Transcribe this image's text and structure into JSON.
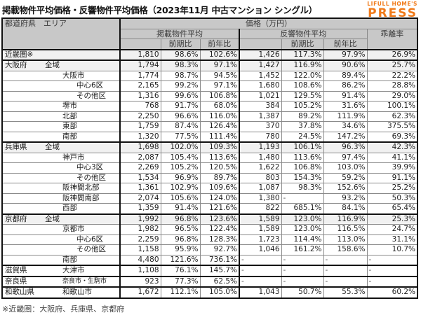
{
  "title": "掲載物件平均価格・反響物件平均価格（2023年11月 中古マンション シングル）",
  "logo": {
    "line1": "LIFULL HOME'S",
    "line2": "PRESS",
    "color": "#f07a1a"
  },
  "header": {
    "area_label": "都道府県　エリア",
    "price_label": "価格（万円）",
    "listed_label": "掲載物件平均",
    "inquiry_label": "反響物件平均",
    "gap_label": "乖離率",
    "qoq_label": "前期比",
    "yoy_label": "前年比"
  },
  "rows": [
    {
      "pref": "近畿圏※",
      "sub": "",
      "level": 0,
      "listed": "1,810",
      "listed_qoq": "98.6%",
      "listed_yoy": "102.6%",
      "inq": "1,426",
      "inq_qoq": "117.3%",
      "inq_yoy": "97.9%",
      "gap": "26.9%"
    },
    {
      "pref": "大阪府",
      "sub": "全域",
      "level": 1,
      "listed": "1,794",
      "listed_qoq": "98.3%",
      "listed_yoy": "97.1%",
      "inq": "1,427",
      "inq_qoq": "116.9%",
      "inq_yoy": "90.6%",
      "gap": "25.7%"
    },
    {
      "pref": "",
      "sub": "大阪市",
      "level": 2,
      "listed": "1,774",
      "listed_qoq": "98.7%",
      "listed_yoy": "94.5%",
      "inq": "1,452",
      "inq_qoq": "122.0%",
      "inq_yoy": "89.4%",
      "gap": "22.2%"
    },
    {
      "pref": "",
      "sub": "中心6区",
      "level": 3,
      "listed": "2,165",
      "listed_qoq": "99.2%",
      "listed_yoy": "97.1%",
      "inq": "1,680",
      "inq_qoq": "108.6%",
      "inq_yoy": "86.2%",
      "gap": "28.8%"
    },
    {
      "pref": "",
      "sub": "その他区",
      "level": 3,
      "listed": "1,316",
      "listed_qoq": "99.6%",
      "listed_yoy": "106.8%",
      "inq": "1,021",
      "inq_qoq": "129.5%",
      "inq_yoy": "91.4%",
      "gap": "29.0%"
    },
    {
      "pref": "",
      "sub": "堺市",
      "level": 2,
      "listed": "768",
      "listed_qoq": "91.7%",
      "listed_yoy": "68.0%",
      "inq": "384",
      "inq_qoq": "105.2%",
      "inq_yoy": "31.6%",
      "gap": "100.1%"
    },
    {
      "pref": "",
      "sub": "北部",
      "level": 2,
      "listed": "2,250",
      "listed_qoq": "96.6%",
      "listed_yoy": "116.0%",
      "inq": "1,387",
      "inq_qoq": "89.2%",
      "inq_yoy": "111.9%",
      "gap": "62.3%"
    },
    {
      "pref": "",
      "sub": "東部",
      "level": 2,
      "listed": "1,759",
      "listed_qoq": "87.4%",
      "listed_yoy": "126.4%",
      "inq": "370",
      "inq_qoq": "37.8%",
      "inq_yoy": "34.6%",
      "gap": "375.5%"
    },
    {
      "pref": "",
      "sub": "南部",
      "level": 2,
      "listed": "1,320",
      "listed_qoq": "77.5%",
      "listed_yoy": "111.4%",
      "inq": "780",
      "inq_qoq": "24.5%",
      "inq_yoy": "147.2%",
      "gap": "69.3%"
    },
    {
      "pref": "兵庫県",
      "sub": "全域",
      "level": 1,
      "listed": "1,698",
      "listed_qoq": "102.0%",
      "listed_yoy": "109.3%",
      "inq": "1,193",
      "inq_qoq": "106.1%",
      "inq_yoy": "96.3%",
      "gap": "42.3%"
    },
    {
      "pref": "",
      "sub": "神戸市",
      "level": 2,
      "listed": "2,087",
      "listed_qoq": "105.4%",
      "listed_yoy": "113.6%",
      "inq": "1,480",
      "inq_qoq": "113.6%",
      "inq_yoy": "97.4%",
      "gap": "41.1%"
    },
    {
      "pref": "",
      "sub": "中心3区",
      "level": 3,
      "listed": "2,269",
      "listed_qoq": "105.2%",
      "listed_yoy": "120.5%",
      "inq": "1,622",
      "inq_qoq": "106.8%",
      "inq_yoy": "103.0%",
      "gap": "39.9%"
    },
    {
      "pref": "",
      "sub": "その他区",
      "level": 3,
      "listed": "1,534",
      "listed_qoq": "96.9%",
      "listed_yoy": "89.7%",
      "inq": "803",
      "inq_qoq": "154.3%",
      "inq_yoy": "59.2%",
      "gap": "91.1%"
    },
    {
      "pref": "",
      "sub": "阪神間北部",
      "level": 2,
      "listed": "1,361",
      "listed_qoq": "102.9%",
      "listed_yoy": "109.6%",
      "inq": "1,087",
      "inq_qoq": "98.3%",
      "inq_yoy": "152.6%",
      "gap": "25.2%"
    },
    {
      "pref": "",
      "sub": "阪神間南部",
      "level": 2,
      "listed": "2,074",
      "listed_qoq": "105.6%",
      "listed_yoy": "124.0%",
      "inq": "1,380",
      "inq_qoq": "-",
      "inq_yoy": "93.2%",
      "gap": "50.3%"
    },
    {
      "pref": "",
      "sub": "西部",
      "level": 2,
      "listed": "1,359",
      "listed_qoq": "91.4%",
      "listed_yoy": "121.6%",
      "inq": "822",
      "inq_qoq": "685.1%",
      "inq_yoy": "84.1%",
      "gap": "65.4%"
    },
    {
      "pref": "京都府",
      "sub": "全域",
      "level": 1,
      "listed": "1,992",
      "listed_qoq": "96.8%",
      "listed_yoy": "123.6%",
      "inq": "1,589",
      "inq_qoq": "123.0%",
      "inq_yoy": "116.9%",
      "gap": "25.3%"
    },
    {
      "pref": "",
      "sub": "京都市",
      "level": 2,
      "listed": "1,982",
      "listed_qoq": "96.5%",
      "listed_yoy": "122.4%",
      "inq": "1,589",
      "inq_qoq": "123.0%",
      "inq_yoy": "116.5%",
      "gap": "24.7%"
    },
    {
      "pref": "",
      "sub": "中心6区",
      "level": 3,
      "listed": "2,259",
      "listed_qoq": "96.8%",
      "listed_yoy": "128.3%",
      "inq": "1,723",
      "inq_qoq": "114.4%",
      "inq_yoy": "113.0%",
      "gap": "31.1%"
    },
    {
      "pref": "",
      "sub": "その他区",
      "level": 3,
      "listed": "1,158",
      "listed_qoq": "95.9%",
      "listed_yoy": "92.7%",
      "inq": "1,046",
      "inq_qoq": "161.2%",
      "inq_yoy": "158.6%",
      "gap": "10.7%"
    },
    {
      "pref": "",
      "sub": "南部",
      "level": 2,
      "listed": "4,480",
      "listed_qoq": "121.6%",
      "listed_yoy": "736.1%",
      "inq": "-",
      "inq_qoq": "-",
      "inq_yoy": "-",
      "gap": "-"
    },
    {
      "pref": "滋賀県",
      "sub": "大津市",
      "level": 2,
      "listed": "1,108",
      "listed_qoq": "76.1%",
      "listed_yoy": "145.7%",
      "inq": "-",
      "inq_qoq": "-",
      "inq_yoy": "-",
      "gap": "-"
    },
    {
      "pref": "奈良県",
      "sub": "奈良市・生駒市",
      "level": 2,
      "listed": "923",
      "listed_qoq": "77.3%",
      "listed_yoy": "62.5%",
      "inq": "-",
      "inq_qoq": "-",
      "inq_yoy": "-",
      "gap": "-"
    },
    {
      "pref": "和歌山県",
      "sub": "和歌山市",
      "level": 2,
      "listed": "1,672",
      "listed_qoq": "112.1%",
      "listed_yoy": "105.0%",
      "inq": "1,043",
      "inq_qoq": "50.7%",
      "inq_yoy": "55.3%",
      "gap": "60.2%"
    }
  ],
  "footnote": "※近畿圏：大阪府、兵庫県、京都府"
}
